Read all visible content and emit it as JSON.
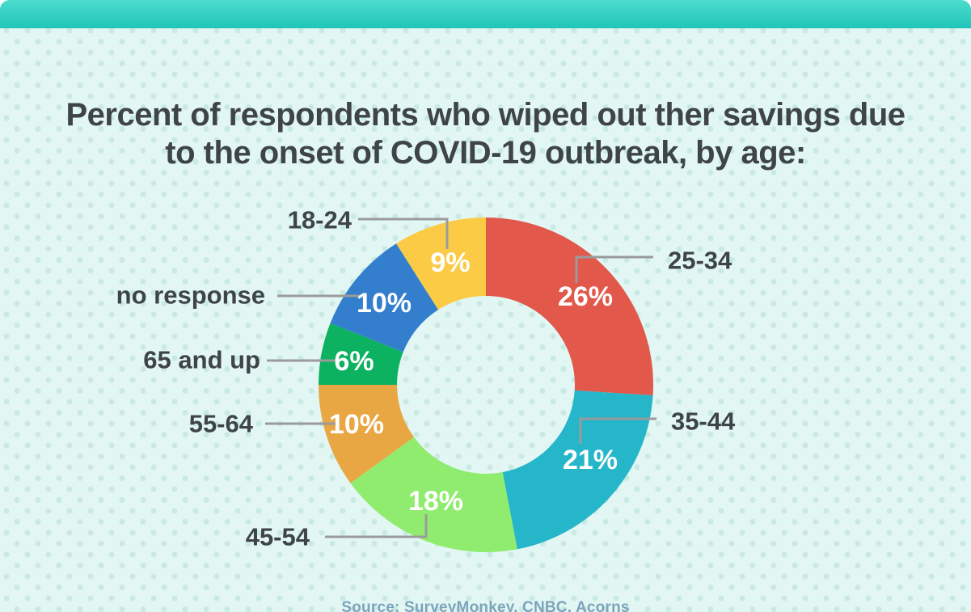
{
  "title_lines": [
    "Percent of respondents who wiped out ther savings due",
    "to the onset of COVID-19 outbreak, by age:"
  ],
  "source": "Source: SurveyMonkey, CNBC, Acorns",
  "theme": {
    "header_bar_gradient_top": "#4cdccd",
    "header_bar_gradient_bottom": "#17c1b5",
    "background": "#e2f7f4",
    "background_dots": "#c9eae2",
    "title_color": "#3e4449",
    "label_color": "#3e4449",
    "value_text_color": "#ffffff",
    "leader_line_color": "#9b9b9b",
    "source_color": "#7ca4bc"
  },
  "chart_data": {
    "type": "pie",
    "donut": true,
    "title": "Percent of respondents who wiped out ther savings due to the onset of COVID-19 outbreak, by age:",
    "start_angle_deg": 0,
    "direction": "clockwise",
    "value_suffix": "%",
    "slices": [
      {
        "label": "25-34",
        "value": 26,
        "color": "#e2584b"
      },
      {
        "label": "35-44",
        "value": 21,
        "color": "#26b6c9"
      },
      {
        "label": "45-54",
        "value": 18,
        "color": "#90ec6f"
      },
      {
        "label": "55-64",
        "value": 10,
        "color": "#e8a742"
      },
      {
        "label": "65 and up",
        "value": 6,
        "color": "#0cb25f"
      },
      {
        "label": "no response",
        "value": 10,
        "color": "#337fcd"
      },
      {
        "label": "18-24",
        "value": 9,
        "color": "#fccb46"
      }
    ],
    "source": "Source: SurveyMonkey, CNBC, Acorns"
  }
}
